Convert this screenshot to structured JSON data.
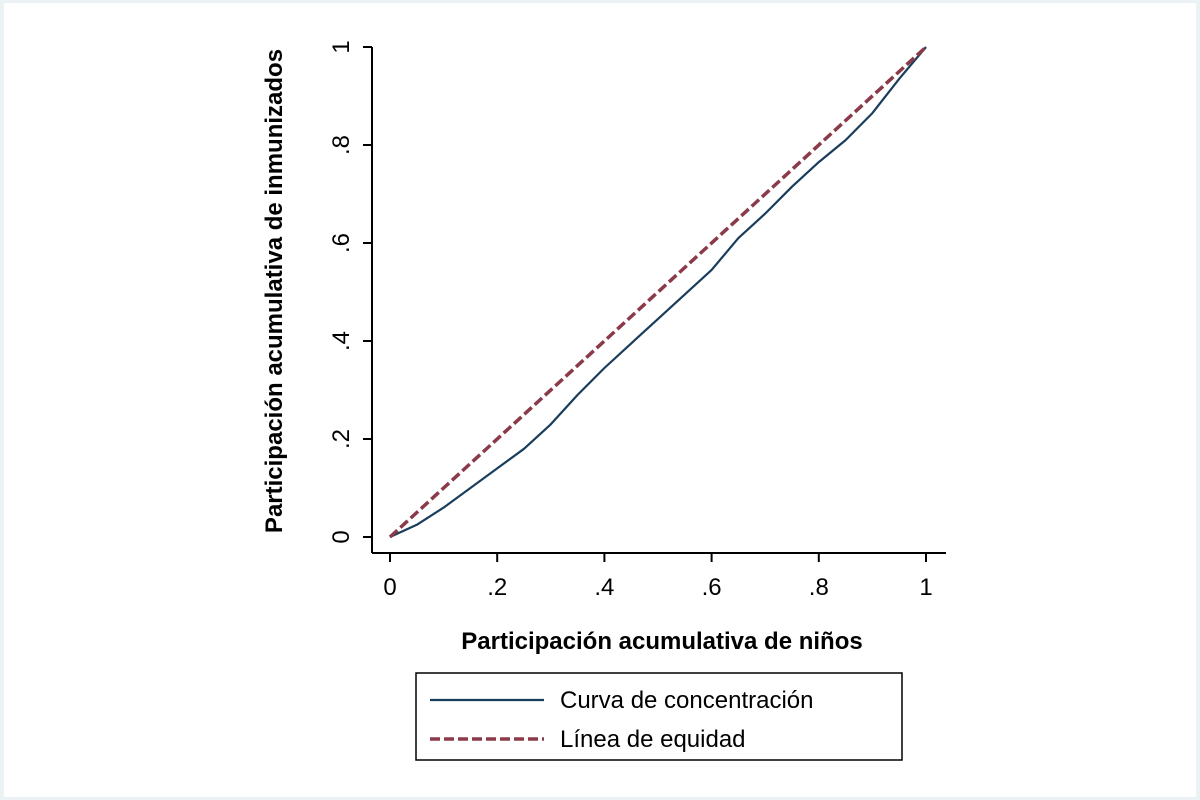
{
  "chart_data": {
    "type": "line",
    "title": "",
    "xlabel": "Participación acumulativa de niños",
    "ylabel": "Participación acumulativa de inmunizados",
    "xlim": [
      0,
      1
    ],
    "ylim": [
      0,
      1
    ],
    "x_ticks": [
      {
        "value": 0,
        "label": "0"
      },
      {
        "value": 0.2,
        "label": ".2"
      },
      {
        "value": 0.4,
        "label": ".4"
      },
      {
        "value": 0.6,
        "label": ".6"
      },
      {
        "value": 0.8,
        "label": ".8"
      },
      {
        "value": 1,
        "label": "1"
      }
    ],
    "y_ticks": [
      {
        "value": 0,
        "label": "0"
      },
      {
        "value": 0.2,
        "label": ".2"
      },
      {
        "value": 0.4,
        "label": ".4"
      },
      {
        "value": 0.6,
        "label": ".6"
      },
      {
        "value": 0.8,
        "label": ".8"
      },
      {
        "value": 1,
        "label": "1"
      }
    ],
    "grid": false,
    "legend_position": "bottom-center",
    "series": [
      {
        "name": "Curva de concentración",
        "color": "#1a3d5c",
        "style": "solid",
        "x": [
          0,
          0.05,
          0.1,
          0.15,
          0.2,
          0.25,
          0.3,
          0.35,
          0.4,
          0.45,
          0.5,
          0.55,
          0.6,
          0.65,
          0.7,
          0.75,
          0.8,
          0.85,
          0.9,
          0.95,
          1.0
        ],
        "y": [
          0,
          0.025,
          0.06,
          0.1,
          0.14,
          0.18,
          0.23,
          0.29,
          0.345,
          0.395,
          0.445,
          0.495,
          0.545,
          0.61,
          0.66,
          0.715,
          0.765,
          0.81,
          0.865,
          0.935,
          1.0
        ]
      },
      {
        "name": "Línea de equidad",
        "color": "#8b3a4a",
        "style": "dashed",
        "x": [
          0,
          1
        ],
        "y": [
          0,
          1
        ]
      }
    ]
  }
}
